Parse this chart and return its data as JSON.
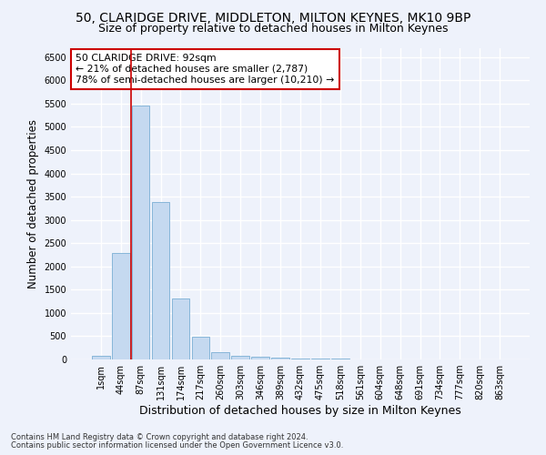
{
  "title1": "50, CLARIDGE DRIVE, MIDDLETON, MILTON KEYNES, MK10 9BP",
  "title2": "Size of property relative to detached houses in Milton Keynes",
  "xlabel": "Distribution of detached houses by size in Milton Keynes",
  "ylabel": "Number of detached properties",
  "bar_labels": [
    "1sqm",
    "44sqm",
    "87sqm",
    "131sqm",
    "174sqm",
    "217sqm",
    "260sqm",
    "303sqm",
    "346sqm",
    "389sqm",
    "432sqm",
    "475sqm",
    "518sqm",
    "561sqm",
    "604sqm",
    "648sqm",
    "691sqm",
    "734sqm",
    "777sqm",
    "820sqm",
    "863sqm"
  ],
  "bar_values": [
    70,
    2280,
    5450,
    3380,
    1310,
    480,
    165,
    80,
    55,
    35,
    20,
    15,
    10,
    8,
    5,
    4,
    3,
    2,
    2,
    1,
    1
  ],
  "bar_color": "#c5d9f0",
  "bar_edge_color": "#7aafd4",
  "ylim": [
    0,
    6700
  ],
  "yticks": [
    0,
    500,
    1000,
    1500,
    2000,
    2500,
    3000,
    3500,
    4000,
    4500,
    5000,
    5500,
    6000,
    6500
  ],
  "vline_x": 2.0,
  "vline_color": "#cc0000",
  "annotation_text": "50 CLARIDGE DRIVE: 92sqm\n← 21% of detached houses are smaller (2,787)\n78% of semi-detached houses are larger (10,210) →",
  "annotation_box_color": "#ffffff",
  "annotation_box_edge": "#cc0000",
  "footer1": "Contains HM Land Registry data © Crown copyright and database right 2024.",
  "footer2": "Contains public sector information licensed under the Open Government Licence v3.0.",
  "bg_color": "#eef2fb",
  "grid_color": "#ffffff",
  "title1_fontsize": 10,
  "title2_fontsize": 9,
  "tick_fontsize": 7,
  "ylabel_fontsize": 8.5,
  "xlabel_fontsize": 9
}
